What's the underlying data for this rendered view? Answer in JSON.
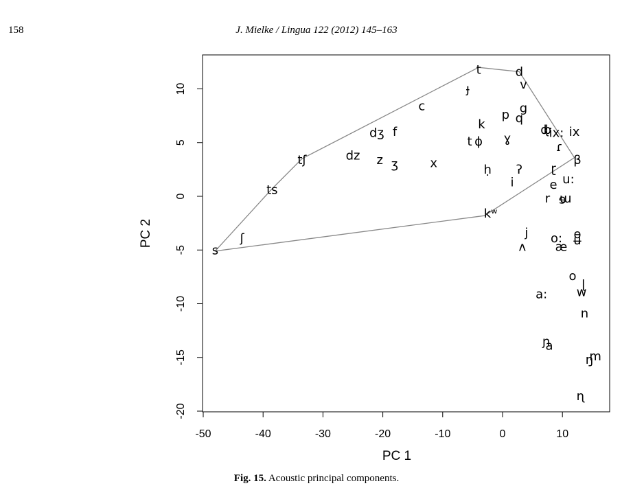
{
  "header": {
    "page_number": "158",
    "running_title": "J. Mielke / Lingua 122 (2012) 145–163"
  },
  "caption": {
    "label": "Fig. 15.",
    "text": "Acoustic principal components."
  },
  "chart_data": {
    "type": "scatter",
    "xlabel": "PC 1",
    "ylabel": "PC 2",
    "xlim": [
      -50,
      18
    ],
    "ylim": [
      -20,
      13
    ],
    "x_ticks": [
      -50,
      -40,
      -30,
      -20,
      -10,
      0,
      10
    ],
    "y_ticks": [
      -20,
      -15,
      -10,
      -5,
      0,
      5,
      10
    ],
    "grid": false,
    "legend": "none",
    "hull": [
      [
        -48,
        -5.1
      ],
      [
        -38.5,
        0.7
      ],
      [
        -33.5,
        3.5
      ],
      [
        -4,
        12
      ],
      [
        2.8,
        11.6
      ],
      [
        12,
        3.6
      ],
      [
        -3,
        -1.8
      ],
      [
        -48,
        -5.1
      ]
    ],
    "points": [
      {
        "label": "t",
        "x": -4,
        "y": 11.8
      },
      {
        "label": "d",
        "x": 2.8,
        "y": 11.6
      },
      {
        "label": "ɟ",
        "x": -5.8,
        "y": 10
      },
      {
        "label": "v",
        "x": 3.5,
        "y": 10.4
      },
      {
        "label": "c",
        "x": -13.5,
        "y": 8.4
      },
      {
        "label": "g",
        "x": 3.5,
        "y": 8.2
      },
      {
        "label": "p",
        "x": 0.5,
        "y": 7.6
      },
      {
        "label": "q",
        "x": 2.8,
        "y": 7.3
      },
      {
        "label": "k",
        "x": -3.5,
        "y": 6.7
      },
      {
        "label": "dʒ",
        "x": -21,
        "y": 5.9
      },
      {
        "label": "f",
        "x": -18,
        "y": 6
      },
      {
        "label": "ɖ",
        "x": 7,
        "y": 6.2
      },
      {
        "label": "b",
        "x": 7.5,
        "y": 6.2
      },
      {
        "label": "ix:",
        "x": 9,
        "y": 5.9
      },
      {
        "label": "ix",
        "x": 12,
        "y": 6
      },
      {
        "label": "t",
        "x": -5.5,
        "y": 5.1
      },
      {
        "label": "ɸ",
        "x": -4,
        "y": 5.1
      },
      {
        "label": "ɣ",
        "x": 0.8,
        "y": 5.4
      },
      {
        "label": "ɾ",
        "x": 9.5,
        "y": 4.6
      },
      {
        "label": "dz",
        "x": -25,
        "y": 3.8
      },
      {
        "label": "z",
        "x": -20.5,
        "y": 3.4
      },
      {
        "label": "ʒ",
        "x": -18,
        "y": 3
      },
      {
        "label": "x",
        "x": -11.5,
        "y": 3.1
      },
      {
        "label": "tʃ",
        "x": -33.5,
        "y": 3.4
      },
      {
        "label": "β",
        "x": 12.5,
        "y": 3.4
      },
      {
        "label": "ḥ",
        "x": -2.5,
        "y": 2.5
      },
      {
        "label": "ʔ",
        "x": 2.8,
        "y": 2.5
      },
      {
        "label": "ɽ",
        "x": 8.5,
        "y": 2.6
      },
      {
        "label": "u:",
        "x": 11,
        "y": 1.6
      },
      {
        "label": "i",
        "x": 1.6,
        "y": 1.3
      },
      {
        "label": "e",
        "x": 8.5,
        "y": 1.1
      },
      {
        "label": "ts",
        "x": -38.5,
        "y": 0.6
      },
      {
        "label": "r",
        "x": 7.5,
        "y": -0.2
      },
      {
        "label": "ɯ",
        "x": 10.5,
        "y": -0.2
      },
      {
        "label": "ɘ",
        "x": 10,
        "y": -0.3
      },
      {
        "label": "kʷ",
        "x": -2,
        "y": -1.6
      },
      {
        "label": "j",
        "x": 4,
        "y": -3.4
      },
      {
        "label": "o:",
        "x": 9,
        "y": -3.9
      },
      {
        "label": "ɵ",
        "x": 12.5,
        "y": -3.5
      },
      {
        "label": "ʉ",
        "x": 12.5,
        "y": -4.1
      },
      {
        "label": "ʃ",
        "x": -43.5,
        "y": -3.9
      },
      {
        "label": "s",
        "x": -48,
        "y": -5
      },
      {
        "label": "ʌ",
        "x": 3.3,
        "y": -4.7
      },
      {
        "label": "æ",
        "x": 9.8,
        "y": -4.7
      },
      {
        "label": "o",
        "x": 11.7,
        "y": -7.4
      },
      {
        "label": "ɭ",
        "x": 13.5,
        "y": -8.2
      },
      {
        "label": "w",
        "x": 13.2,
        "y": -8.9
      },
      {
        "label": "a:",
        "x": 6.5,
        "y": -9.1
      },
      {
        "label": "n",
        "x": 13.7,
        "y": -10.9
      },
      {
        "label": "ɲ",
        "x": 7.3,
        "y": -13.5
      },
      {
        "label": "a",
        "x": 7.8,
        "y": -13.9
      },
      {
        "label": "m",
        "x": 15.5,
        "y": -14.9
      },
      {
        "label": "ŋ",
        "x": 14.5,
        "y": -15.2
      },
      {
        "label": "ɳ",
        "x": 13,
        "y": -18.6
      }
    ]
  }
}
